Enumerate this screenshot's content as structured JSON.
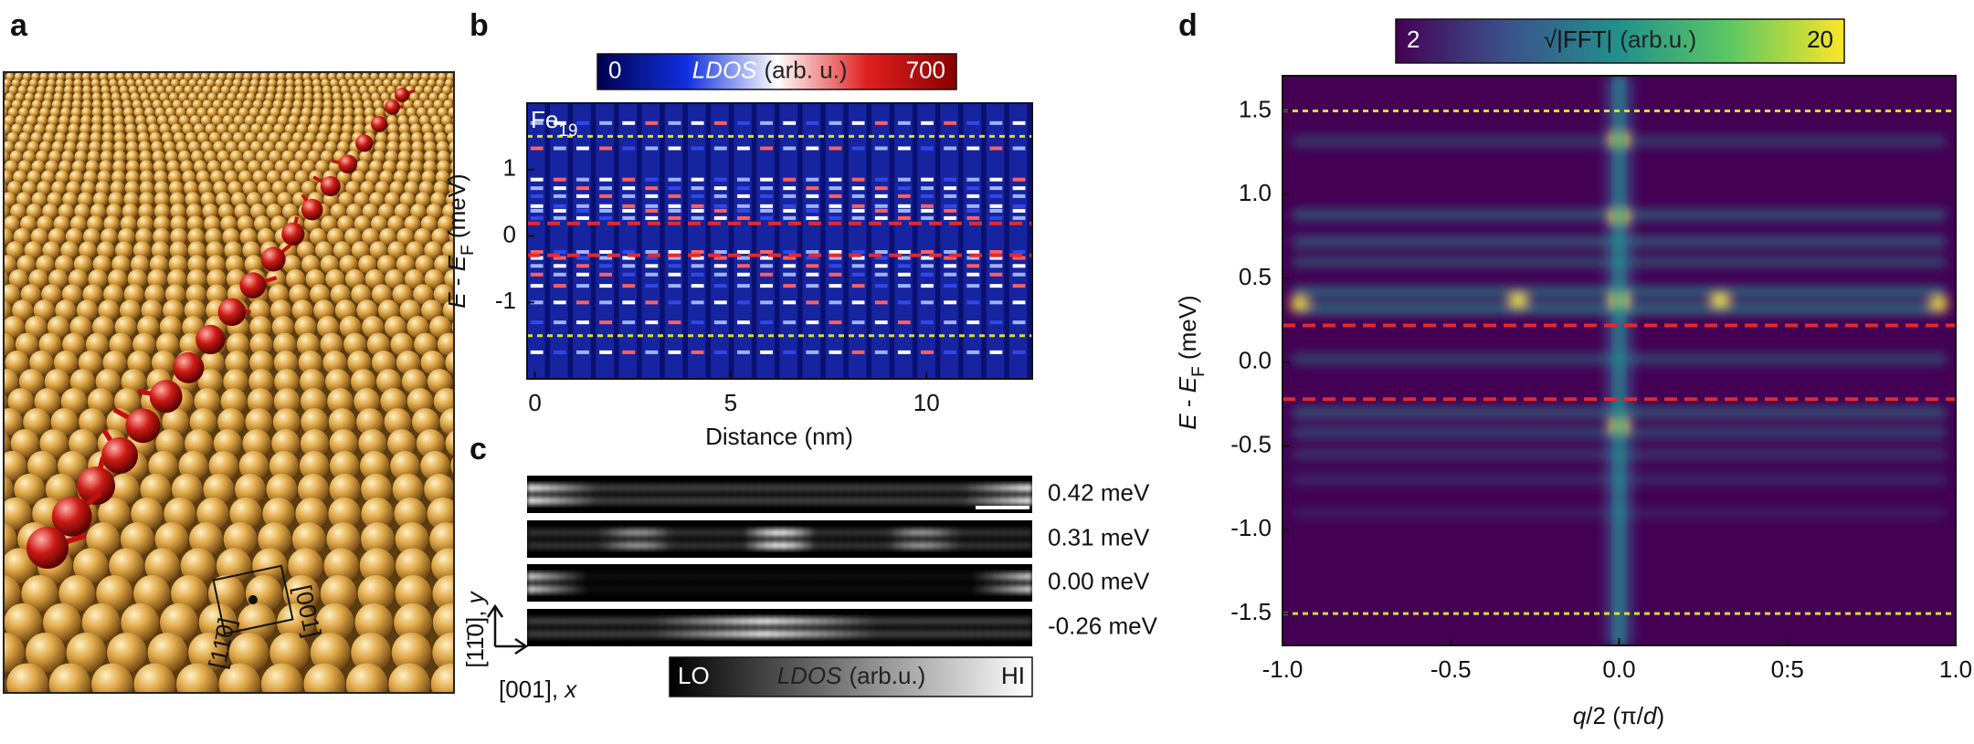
{
  "panel_a": {
    "label": "a",
    "directions": [
      "[11̄0]",
      "[001]"
    ]
  },
  "chart_data": [
    {
      "type": "heatmap",
      "panel_label": "b",
      "annotation": {
        "text": "Fe",
        "subscript": "19"
      },
      "xlabel": "Distance (nm)",
      "ylabel": [
        "E",
        " - ",
        "E",
        "F",
        " (meV)"
      ],
      "xlim": [
        -0.2,
        12.7
      ],
      "ylim": [
        -2.15,
        2.0
      ],
      "xticks": [
        0,
        5,
        10
      ],
      "yticks": [
        -1,
        0,
        1
      ],
      "colorbar": {
        "clim": [
          0,
          700
        ],
        "label": [
          "LDOS",
          "(arb. u.)"
        ],
        "colors": [
          "#000050",
          "#1030e0",
          "#ffffff",
          "#e02020",
          "#8a0000"
        ]
      },
      "hlines": [
        {
          "value": 1.5,
          "color": "#d8e030"
        },
        {
          "value": 0.19,
          "color": "#e82828"
        },
        {
          "value": -0.29,
          "color": "#e82828"
        },
        {
          "value": -1.5,
          "color": "#d8e030"
        }
      ]
    },
    {
      "type": "heatmap",
      "panel_label": "d",
      "xlabel": [
        "q",
        "/2 (π/",
        "d",
        ")"
      ],
      "ylabel": [
        "E",
        " - ",
        "E",
        "F",
        " (meV)"
      ],
      "xlim": [
        -1.0,
        1.0
      ],
      "ylim": [
        -1.69,
        1.71
      ],
      "xticks": [
        {
          "value": -1.0,
          "label": "-1.0"
        },
        {
          "value": -0.5,
          "label": "-0.5"
        },
        {
          "value": 0.0,
          "label": "0.0"
        },
        {
          "value": 0.5,
          "label": "0:5"
        },
        {
          "value": 1.0,
          "label": "1.0"
        }
      ],
      "yticks": [
        {
          "value": 1.5,
          "label": "1.5"
        },
        {
          "value": 1.0,
          "label": "1.0"
        },
        {
          "value": 0.5,
          "label": "0.5"
        },
        {
          "value": 0.0,
          "label": "0.0"
        },
        {
          "value": -0.5,
          "label": "-0.5"
        },
        {
          "value": -1.0,
          "label": "-1.0"
        },
        {
          "value": -1.5,
          "label": "-1.5"
        }
      ],
      "colorbar": {
        "clim": [
          2,
          20
        ],
        "label": [
          "√|FFT|",
          "(arb.u.)"
        ],
        "colors": [
          "#440154",
          "#3b528b",
          "#21918c",
          "#5ec962",
          "#fde725"
        ]
      },
      "hlines": [
        {
          "value": 1.5,
          "color": "#d8e030"
        },
        {
          "value": 0.22,
          "color": "#e82828"
        },
        {
          "value": -0.22,
          "color": "#e82828"
        },
        {
          "value": -1.5,
          "color": "#d8e030"
        }
      ]
    }
  ],
  "panel_c": {
    "label": "c",
    "strips": [
      {
        "label": "0.42 meV"
      },
      {
        "label": "0.31 meV"
      },
      {
        "label": "0.00 meV"
      },
      {
        "label": "-0.26 meV"
      }
    ],
    "axes": {
      "y": [
        "[11̄0], ",
        "y"
      ],
      "x": [
        "[001], ",
        "x"
      ]
    },
    "colorbar": {
      "low": "LO",
      "label": [
        "LDOS",
        "(arb.u.)"
      ],
      "high": "HI"
    }
  }
}
